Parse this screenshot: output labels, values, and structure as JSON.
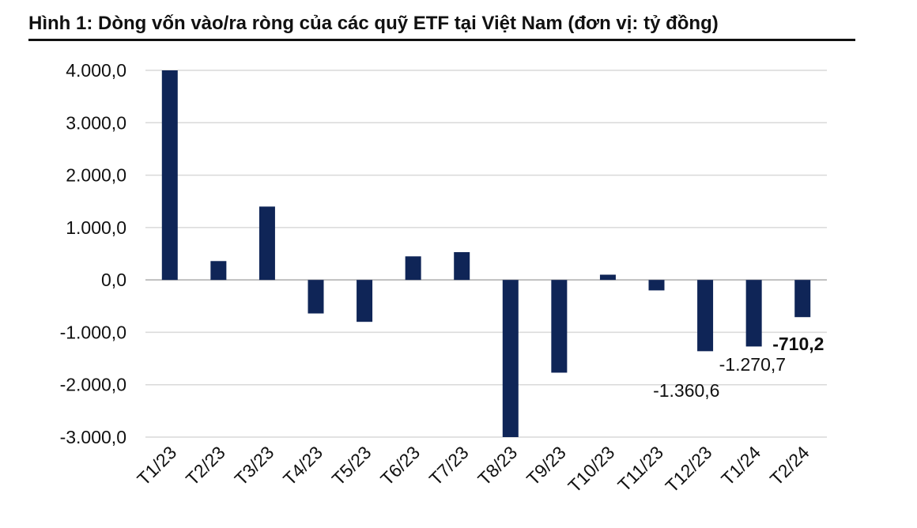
{
  "chart_data": {
    "type": "bar",
    "title": "Hình 1: Dòng vốn vào/ra ròng của các quỹ ETF tại Việt Nam (đơn vị: tỷ đồng)",
    "categories": [
      "T1/23",
      "T2/23",
      "T3/23",
      "T4/23",
      "T5/23",
      "T6/23",
      "T7/23",
      "T8/23",
      "T9/23",
      "T10/23",
      "T11/23",
      "T12/23",
      "T1/24",
      "T2/24"
    ],
    "values": [
      4000,
      360,
      1400,
      -640,
      -800,
      450,
      530,
      -3000,
      -1770,
      100,
      -200,
      -1360.6,
      -1270.7,
      -710.2
    ],
    "yticks": [
      "4.000,0",
      "3.000,0",
      "2.000,0",
      "1.000,0",
      "0,0",
      "-1.000,0",
      "-2.000,0",
      "-3.000,0"
    ],
    "ytick_values": [
      4000,
      3000,
      2000,
      1000,
      0,
      -1000,
      -2000,
      -3000
    ],
    "ylim": [
      -3000,
      4000
    ],
    "grid": true,
    "bar_color": "#0f2557",
    "data_labels": [
      {
        "category": "T12/23",
        "text": "-1.360,6",
        "bold": false
      },
      {
        "category": "T1/24",
        "text": "-1.270,7",
        "bold": false
      },
      {
        "category": "T2/24",
        "text": "-710,2",
        "bold": true
      }
    ]
  }
}
